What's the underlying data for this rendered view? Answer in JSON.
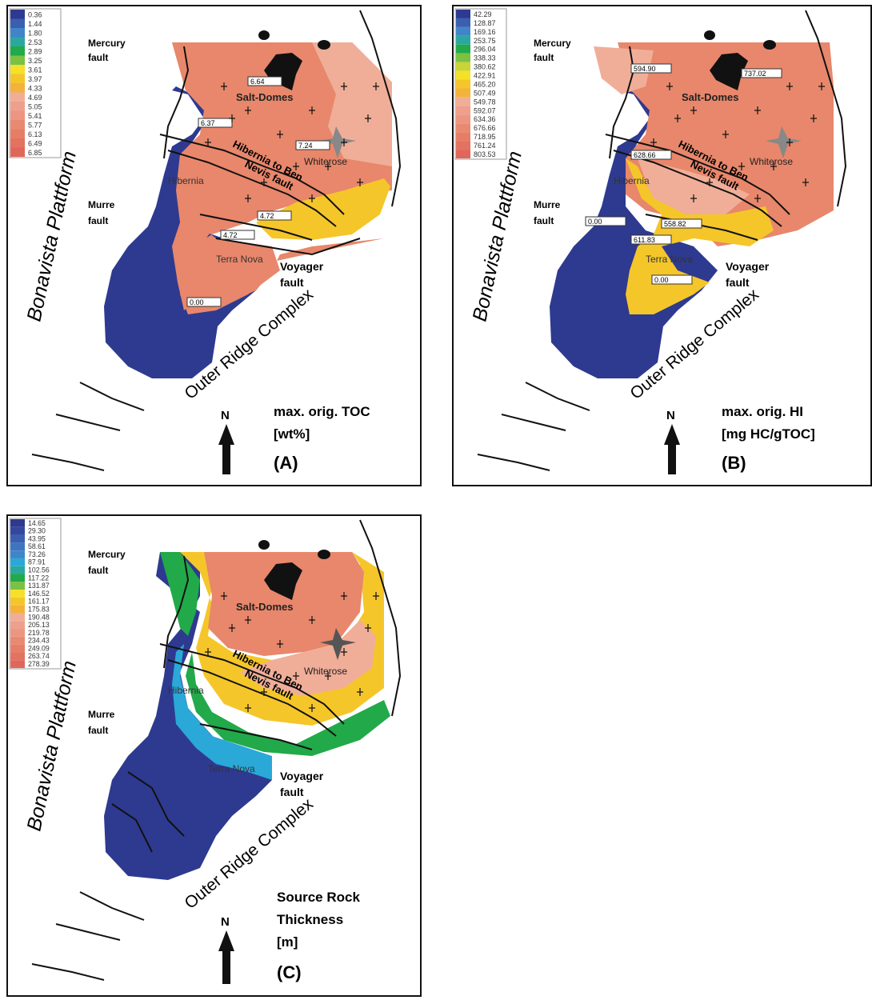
{
  "colors": {
    "water_blue": "#2e3a8f",
    "salmon": "#e8876b",
    "light_salmon": "#f0ae98",
    "yellow": "#f5c62a",
    "green": "#22a94a",
    "cyan": "#2aa8d8",
    "black": "#111111"
  },
  "labels": {
    "platform": "Bonavista Plattform",
    "outer_ridge": "Outer Ridge Complex",
    "mercury_fault": [
      "Mercury",
      "fault"
    ],
    "murre_fault": [
      "Murre",
      "fault"
    ],
    "voyager_fault": [
      "Voyager",
      "fault"
    ],
    "salt_domes": "Salt-Domes",
    "whiterose": "Whiterose",
    "hibernia": "Hibernia",
    "hibernia_to_ben": "Hibernia to Ben",
    "nevis_fault": "Nevis fault",
    "terra_nova": "Terra Nova",
    "north": "N"
  },
  "panels": [
    {
      "id": "A",
      "title_lines": [
        "max. orig. TOC",
        "[wt%]"
      ],
      "tag": "(A)",
      "legend": [
        "0.36",
        "1.44",
        "1.80",
        "2.53",
        "2.89",
        "3.25",
        "3.61",
        "3.97",
        "4.33",
        "4.69",
        "5.05",
        "5.41",
        "5.77",
        "6.13",
        "6.49",
        "6.85"
      ],
      "values": [
        "6.64",
        "6.37",
        "7.24",
        "4.72",
        "4.72",
        "0.00"
      ]
    },
    {
      "id": "B",
      "title_lines": [
        "max. orig. HI",
        "[mg HC/gTOC]"
      ],
      "tag": "(B)",
      "legend": [
        "42.29",
        "128.87",
        "169.16",
        "253.75",
        "296.04",
        "338.33",
        "380.62",
        "422.91",
        "465.20",
        "507.49",
        "549.78",
        "592.07",
        "634.36",
        "676.66",
        "718.95",
        "761.24",
        "803.53"
      ],
      "values": [
        "594.90",
        "737.02",
        "628.66",
        "558.82",
        "0.00",
        "611.83",
        "0.00"
      ]
    },
    {
      "id": "C",
      "title_lines": [
        "Source Rock",
        "Thickness",
        "[m]"
      ],
      "tag": "(C)",
      "legend": [
        "14.65",
        "29.30",
        "43.95",
        "58.61",
        "73.26",
        "87.91",
        "102.56",
        "117.22",
        "131.87",
        "146.52",
        "161.17",
        "175.83",
        "190.48",
        "205.13",
        "219.78",
        "234.43",
        "249.09",
        "263.74",
        "278.39"
      ]
    }
  ]
}
